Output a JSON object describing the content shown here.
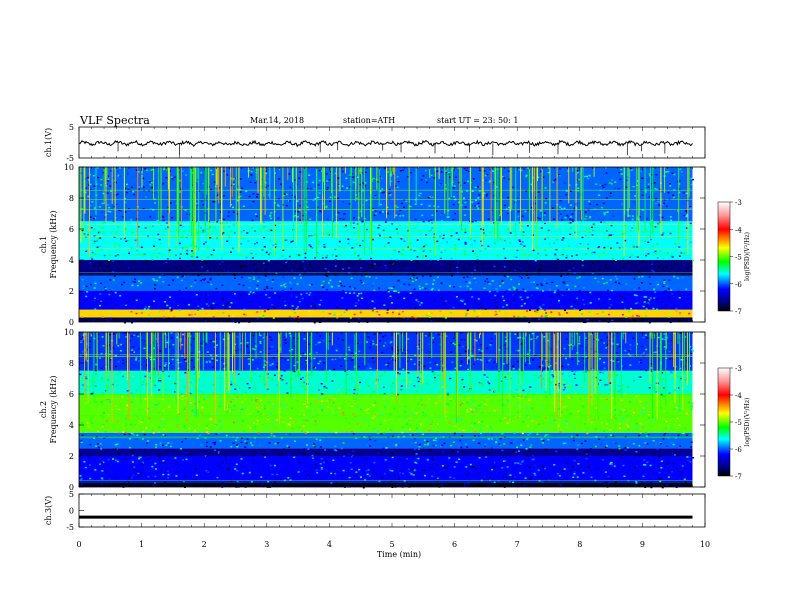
{
  "header": {
    "title": "VLF  Spectra",
    "date": "Mar.14, 2018",
    "station": "station=ATH",
    "start": "start  UT  =    23: 50: 1"
  },
  "colorbar": {
    "label": "log(PSD)(V²/Hz)",
    "ticks": [
      "-3",
      "-4",
      "-5",
      "-6",
      "-7"
    ],
    "colors": [
      "#ffffff",
      "#ff9999",
      "#ff0000",
      "#ffff00",
      "#00ff00",
      "#00ffff",
      "#0000ff",
      "#000080",
      "#000000"
    ]
  },
  "chart_data": [
    {
      "type": "line",
      "name": "ch1-waveform",
      "ylabel": "ch.1(V)",
      "ylim": [
        -5,
        5
      ],
      "yticks": [
        "5",
        "-5"
      ],
      "x": [
        0,
        1,
        2,
        3,
        4,
        5,
        6,
        7,
        8,
        9,
        9.8
      ],
      "y": [
        -0.3,
        -0.2,
        -0.3,
        -0.4,
        -0.3,
        -0.3,
        -0.2,
        -0.3,
        -0.2,
        -0.3,
        -0.3
      ]
    },
    {
      "type": "heatmap",
      "name": "ch1-spectrogram",
      "ylabel": "ch.1\nFrequency (kHz)",
      "ylim": [
        0,
        10
      ],
      "yticks": [
        "10",
        "8",
        "6",
        "4",
        "2",
        "0"
      ],
      "x_range_min": [
        0,
        9.8
      ],
      "bands_khz_log_psd": [
        {
          "f": [
            0.0,
            0.3
          ],
          "v": -6.8
        },
        {
          "f": [
            0.3,
            0.8
          ],
          "v": -4.5
        },
        {
          "f": [
            0.8,
            2.0
          ],
          "v": -6.2
        },
        {
          "f": [
            2.0,
            3.0
          ],
          "v": -6.0
        },
        {
          "f": [
            3.0,
            4.0
          ],
          "v": -6.7
        },
        {
          "f": [
            4.0,
            6.5
          ],
          "v": -5.7
        },
        {
          "f": [
            6.5,
            10.0
          ],
          "v": -6.0
        }
      ]
    },
    {
      "type": "heatmap",
      "name": "ch2-spectrogram",
      "ylabel": "ch.2\nFrequency (kHz)",
      "ylim": [
        0,
        10
      ],
      "yticks": [
        "10",
        "8",
        "6",
        "4",
        "2",
        "0"
      ],
      "x_range_min": [
        0,
        9.8
      ],
      "bands_khz_log_psd": [
        {
          "f": [
            0.0,
            0.3
          ],
          "v": -6.9
        },
        {
          "f": [
            0.3,
            2.0
          ],
          "v": -6.2
        },
        {
          "f": [
            2.0,
            2.5
          ],
          "v": -6.6
        },
        {
          "f": [
            2.5,
            3.5
          ],
          "v": -6.0
        },
        {
          "f": [
            3.5,
            6.0
          ],
          "v": -5.0
        },
        {
          "f": [
            6.0,
            7.5
          ],
          "v": -5.6
        },
        {
          "f": [
            7.5,
            10.0
          ],
          "v": -6.1
        }
      ]
    },
    {
      "type": "line",
      "name": "ch3-waveform",
      "ylabel": "ch.3(V)",
      "ylim": [
        -5,
        5
      ],
      "yticks": [
        "5",
        "0",
        "-5"
      ],
      "x": [
        0,
        9.8
      ],
      "y": [
        -2,
        -2
      ]
    }
  ],
  "xaxis": {
    "label": "Time  (min)",
    "xlim": [
      0,
      10
    ],
    "ticks": [
      "0",
      "1",
      "2",
      "3",
      "4",
      "5",
      "6",
      "7",
      "8",
      "9",
      "10"
    ]
  }
}
